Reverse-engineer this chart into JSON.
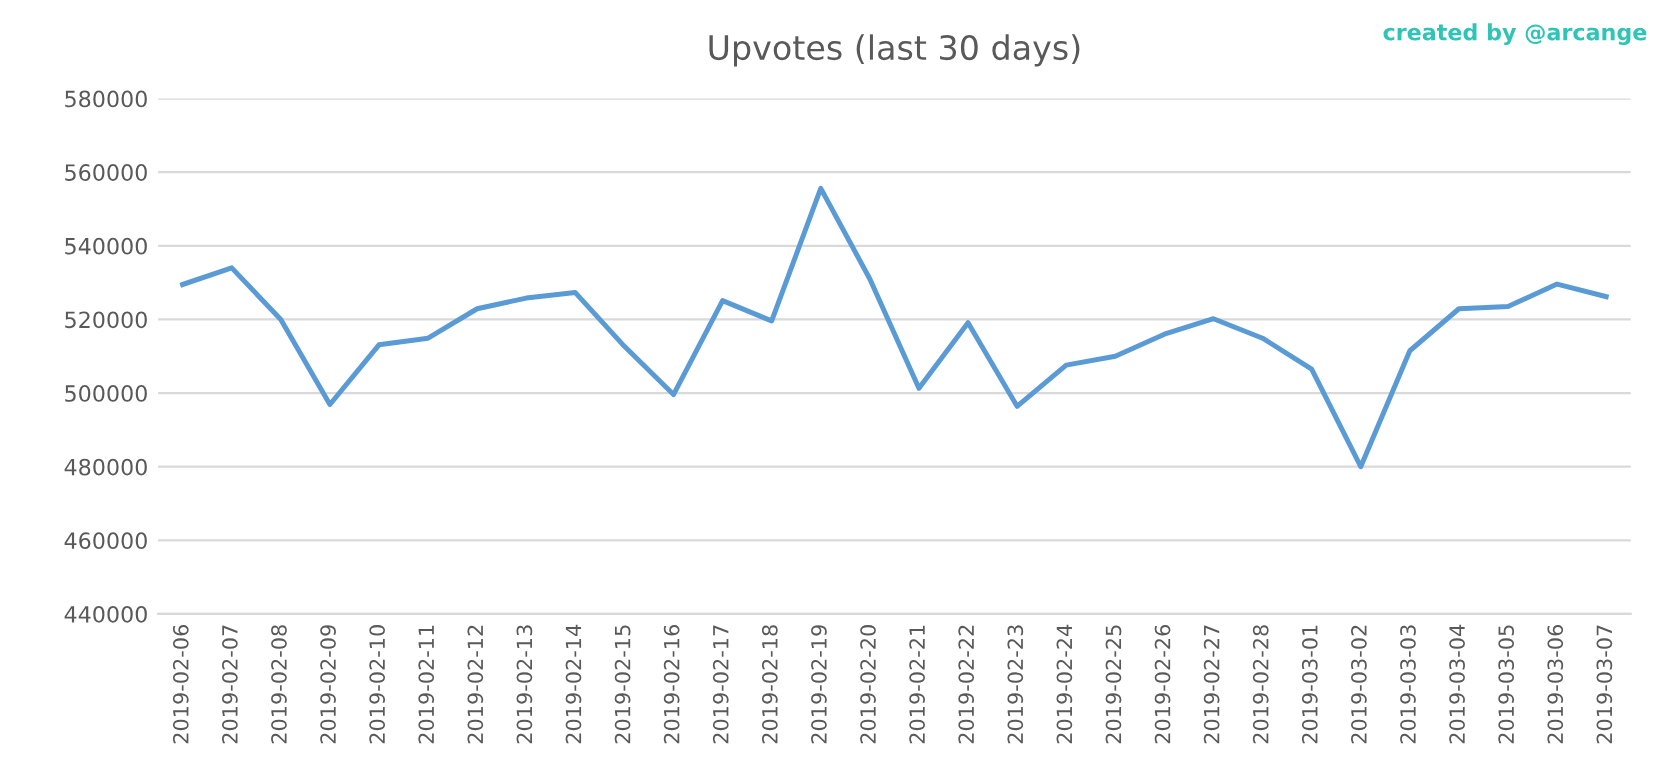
{
  "chart_data": {
    "type": "line",
    "title": "Upvotes (last 30 days)",
    "annotations": [
      "created by @arcange"
    ],
    "categories": [
      "2019-02-06",
      "2019-02-07",
      "2019-02-08",
      "2019-02-09",
      "2019-02-10",
      "2019-02-11",
      "2019-02-12",
      "2019-02-13",
      "2019-02-14",
      "2019-02-15",
      "2019-02-16",
      "2019-02-17",
      "2019-02-18",
      "2019-02-19",
      "2019-02-20",
      "2019-02-21",
      "2019-02-22",
      "2019-02-23",
      "2019-02-24",
      "2019-02-25",
      "2019-02-26",
      "2019-02-27",
      "2019-02-28",
      "2019-03-01",
      "2019-03-02",
      "2019-03-03",
      "2019-03-04",
      "2019-03-05",
      "2019-03-06",
      "2019-03-07"
    ],
    "series": [
      {
        "color": "#5b9bd5",
        "values": [
          529500,
          534000,
          520000,
          496900,
          513100,
          514900,
          522900,
          525800,
          527300,
          512700,
          499600,
          525100,
          519600,
          555600,
          531000,
          501300,
          519100,
          496400,
          507600,
          510000,
          516000,
          520200,
          514900,
          506500,
          480000,
          511500,
          522900,
          523500,
          529600,
          526200
        ]
      }
    ],
    "ylim": [
      440000,
      580000
    ],
    "yticks": [
      440000,
      460000,
      480000,
      500000,
      520000,
      540000,
      560000,
      580000
    ],
    "grid": "y",
    "legend": false,
    "marker": "none",
    "line_style": "solid"
  }
}
